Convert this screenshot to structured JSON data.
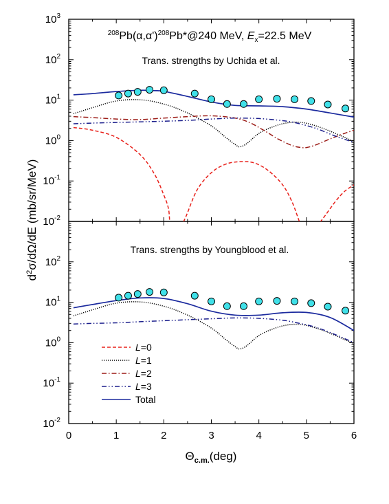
{
  "chart_data": {
    "type": "line",
    "title_parts": {
      "mass1": "208",
      "reaction": "Pb(α,α')",
      "mass2": "208",
      "residual": "Pb*@240 MeV, ",
      "ex_symbol": "E",
      "ex_sub": "x",
      "ex_value": "=22.5 MeV"
    },
    "xlabel": {
      "symbol": "Θ",
      "sub": "c.m.",
      "unit": "(deg)"
    },
    "ylabel": {
      "prefix": "d",
      "sup": "2",
      "rest": "σ/dΩ/dE (mb/sr/MeV)"
    },
    "xlim": [
      0,
      6
    ],
    "ylim": [
      0.01,
      1000
    ],
    "yscale": "log",
    "x_ticks": [
      "0",
      "1",
      "2",
      "3",
      "4",
      "5",
      "6"
    ],
    "y_tick_base": "10",
    "y_tick_exponents": [
      "-2",
      "-1",
      "0",
      "1",
      "2",
      "3"
    ],
    "legend": {
      "placement": "lower-left of bottom panel",
      "entries": [
        {
          "prefix": "L",
          "label": "=0",
          "color": "#e8201a",
          "dash": "5,3"
        },
        {
          "prefix": "L",
          "label": "=1",
          "color": "#000000",
          "dash": "1.2,1.8"
        },
        {
          "prefix": "L",
          "label": "=2",
          "color": "#9b1b16",
          "dash": "7,3,1.5,3"
        },
        {
          "prefix": "L",
          "label": "=3",
          "color": "#1b1e8c",
          "dash": "7,3,1.5,3,1.5,3"
        },
        {
          "prefix": "",
          "label": "Total",
          "color": "#1b2a9e",
          "dash": ""
        }
      ]
    },
    "data_color": "#40e0e8",
    "panels": [
      {
        "subtitle": "Trans. strengths by Uchida et al.",
        "experimental": {
          "x": [
            1.05,
            1.25,
            1.45,
            1.7,
            2.0,
            2.65,
            3.0,
            3.33,
            3.68,
            4.0,
            4.38,
            4.75,
            5.1,
            5.45,
            5.82
          ],
          "y": [
            13,
            14.5,
            16,
            18,
            17.5,
            14.5,
            10.5,
            8,
            8,
            10.5,
            10.8,
            10.5,
            9.5,
            7.8,
            6.2
          ]
        },
        "series": [
          {
            "name": "L=0",
            "x": [
              0.1,
              0.5,
              1.0,
              1.5,
              1.8,
              2.0,
              2.1,
              2.15,
              2.3,
              2.45,
              2.7,
              3.0,
              3.3,
              3.6,
              3.9,
              4.2,
              4.5,
              4.7,
              4.85,
              4.95,
              5.05,
              5.3,
              5.6,
              5.8,
              6.0
            ],
            "y": [
              2.1,
              1.8,
              1.2,
              0.45,
              0.15,
              0.045,
              0.02,
              0.006,
              0.006,
              0.012,
              0.06,
              0.16,
              0.26,
              0.3,
              0.28,
              0.18,
              0.08,
              0.03,
              0.01,
              0.003,
              0.003,
              0.01,
              0.03,
              0.055,
              0.08
            ]
          },
          {
            "name": "L=1",
            "x": [
              0.1,
              0.5,
              1.0,
              1.5,
              2.0,
              2.5,
              3.0,
              3.3,
              3.5,
              3.6,
              3.75,
              4.0,
              4.3,
              4.6,
              4.9,
              5.2,
              5.5,
              5.8,
              6.0
            ],
            "y": [
              4.6,
              6.5,
              9.5,
              10.2,
              8,
              4.8,
              2.3,
              1.2,
              0.8,
              0.7,
              0.85,
              1.5,
              2.2,
              2.75,
              2.8,
              2.3,
              1.7,
              1.2,
              0.95
            ]
          },
          {
            "name": "L=2",
            "x": [
              0.1,
              0.5,
              1.0,
              1.5,
              2.0,
              2.5,
              3.0,
              3.5,
              3.8,
              4.1,
              4.4,
              4.7,
              4.9,
              5.0,
              5.2,
              5.5,
              5.8,
              6.0
            ],
            "y": [
              3.9,
              3.7,
              3.4,
              3.3,
              3.6,
              3.9,
              4.1,
              3.6,
              2.8,
              1.8,
              1.1,
              0.75,
              0.67,
              0.67,
              0.78,
              1.1,
              1.5,
              1.8
            ]
          },
          {
            "name": "L=3",
            "x": [
              0.1,
              0.5,
              1.0,
              1.5,
              2.0,
              2.5,
              3.0,
              3.5,
              4.0,
              4.5,
              4.8,
              5.2,
              5.6,
              6.0
            ],
            "y": [
              2.6,
              2.7,
              2.8,
              2.9,
              3.0,
              3.15,
              3.4,
              3.6,
              3.5,
              3.1,
              2.7,
              2.0,
              1.3,
              0.9
            ]
          },
          {
            "name": "Total",
            "x": [
              0.1,
              0.5,
              1.0,
              1.5,
              1.8,
              2.0,
              2.5,
              3.0,
              3.5,
              4.0,
              4.5,
              5.0,
              5.5,
              6.0
            ],
            "y": [
              13.5,
              14.5,
              16.3,
              17.5,
              17.2,
              16.5,
              12.3,
              9,
              7.4,
              7.2,
              6.9,
              6,
              4.8,
              3.8
            ]
          }
        ]
      },
      {
        "subtitle": "Trans. strengths by Youngblood et al.",
        "experimental": {
          "x": [
            1.05,
            1.25,
            1.45,
            1.7,
            2.0,
            2.65,
            3.0,
            3.33,
            3.68,
            4.0,
            4.38,
            4.75,
            5.1,
            5.45,
            5.82
          ],
          "y": [
            13,
            14.5,
            16,
            18,
            17.5,
            14.5,
            10.5,
            8,
            8,
            10.5,
            10.8,
            10.5,
            9.5,
            7.8,
            6.2
          ]
        },
        "series": [
          {
            "name": "L=1",
            "x": [
              0.1,
              0.5,
              1.0,
              1.5,
              2.0,
              2.5,
              3.0,
              3.3,
              3.5,
              3.6,
              3.75,
              4.0,
              4.3,
              4.6,
              4.9,
              5.2,
              5.5,
              5.8,
              6.0
            ],
            "y": [
              4.6,
              6.5,
              9.5,
              10.2,
              8,
              4.8,
              2.3,
              1.2,
              0.8,
              0.7,
              0.85,
              1.5,
              2.2,
              2.75,
              2.8,
              2.3,
              1.7,
              1.2,
              0.95
            ]
          },
          {
            "name": "L=3",
            "x": [
              0.1,
              0.5,
              1.0,
              1.5,
              2.0,
              2.5,
              3.0,
              3.5,
              4.0,
              4.5,
              4.8,
              5.2,
              5.6,
              6.0
            ],
            "y": [
              2.9,
              3.0,
              3.1,
              3.3,
              3.5,
              3.7,
              3.9,
              4.1,
              4.0,
              3.6,
              3.1,
              2.4,
              1.6,
              1.0
            ]
          },
          {
            "name": "Total",
            "x": [
              0.1,
              0.5,
              1.0,
              1.5,
              2.0,
              2.5,
              3.0,
              3.5,
              4.0,
              4.5,
              5.0,
              5.5,
              6.0
            ],
            "y": [
              7.3,
              8.8,
              11,
              12.8,
              12.4,
              9.2,
              6,
              4.8,
              4.8,
              5.5,
              5.6,
              4.2,
              2.0
            ]
          }
        ]
      }
    ]
  }
}
